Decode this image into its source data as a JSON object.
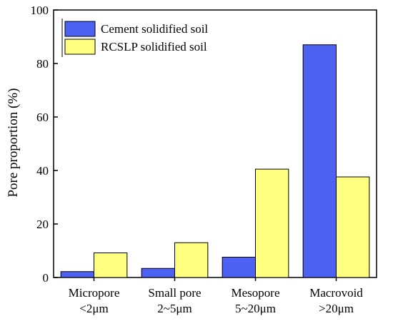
{
  "chart_data": {
    "type": "bar",
    "categories": [
      [
        "Micropore",
        "<2μm"
      ],
      [
        "Small pore",
        "2~5μm"
      ],
      [
        "Mesopore",
        "5~20μm"
      ],
      [
        "Macrovoid",
        ">20μm"
      ]
    ],
    "series": [
      {
        "name": "Cement solidified soil",
        "values": [
          2.2,
          3.4,
          7.6,
          87.0
        ],
        "color": "#4d62f2"
      },
      {
        "name": "RCSLP solidified soil",
        "values": [
          9.2,
          13.0,
          40.5,
          37.6
        ],
        "color": "#ffff80"
      }
    ],
    "title": "",
    "xlabel": "",
    "ylabel": "Pore proportion (%)",
    "ylim": [
      0,
      100
    ],
    "yticks": [
      0,
      20,
      40,
      60,
      80,
      100
    ],
    "grid": false,
    "legend_position": "top-left"
  }
}
